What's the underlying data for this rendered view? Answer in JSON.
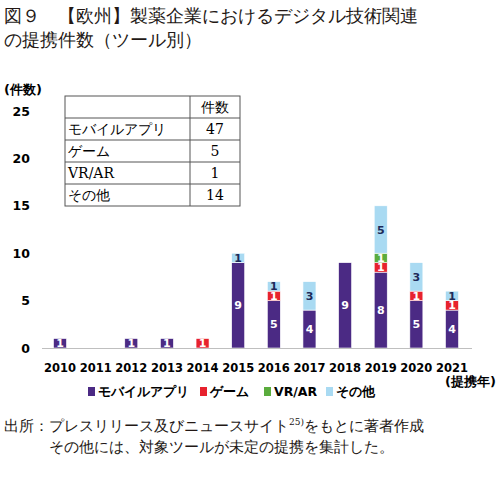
{
  "chart_data": {
    "type": "bar",
    "stacked": true,
    "data_labels": true,
    "grid": false,
    "legend": "bottom",
    "title": [
      "図９　【欧州】製薬企業におけるデジタル技術関連",
      "の提携件数（ツール別）"
    ],
    "y_label": "(件数)",
    "x_label": "(提携年)",
    "categories": [
      "2010",
      "2011",
      "2012",
      "2013",
      "2014",
      "2015",
      "2016",
      "2017",
      "2018",
      "2019",
      "2020",
      "2021"
    ],
    "ylim": [
      0,
      25
    ],
    "yticks": [
      0,
      5,
      10,
      15,
      20,
      25
    ],
    "series": [
      {
        "name": "モバイルアプリ",
        "color": "#4b2a84",
        "values": [
          1,
          0,
          1,
          1,
          0,
          9,
          5,
          4,
          9,
          8,
          5,
          4
        ]
      },
      {
        "name": "ゲーム",
        "color": "#e7222e",
        "values": [
          0,
          0,
          0,
          0,
          1,
          0,
          1,
          0,
          0,
          1,
          1,
          1
        ]
      },
      {
        "name": "VR/AR",
        "color": "#5aac3d",
        "values": [
          0,
          0,
          0,
          0,
          0,
          0,
          0,
          0,
          0,
          1,
          0,
          0
        ]
      },
      {
        "name": "その他",
        "color": "#a9daf2",
        "values": [
          0,
          0,
          0,
          0,
          0,
          1,
          1,
          3,
          0,
          5,
          3,
          1
        ]
      }
    ],
    "table": {
      "header": "件数",
      "rows": [
        [
          "モバイルアプリ",
          47
        ],
        [
          "ゲーム",
          5
        ],
        [
          "VR/AR",
          1
        ],
        [
          "その他",
          14
        ]
      ]
    },
    "source": {
      "label": "出所：",
      "text": "プレスリリース及びニュースサイト",
      "ref": "25)",
      "text_after": "をもとに著者作成"
    },
    "note": "その他には、対象ツールが未定の提携を集計した。"
  }
}
